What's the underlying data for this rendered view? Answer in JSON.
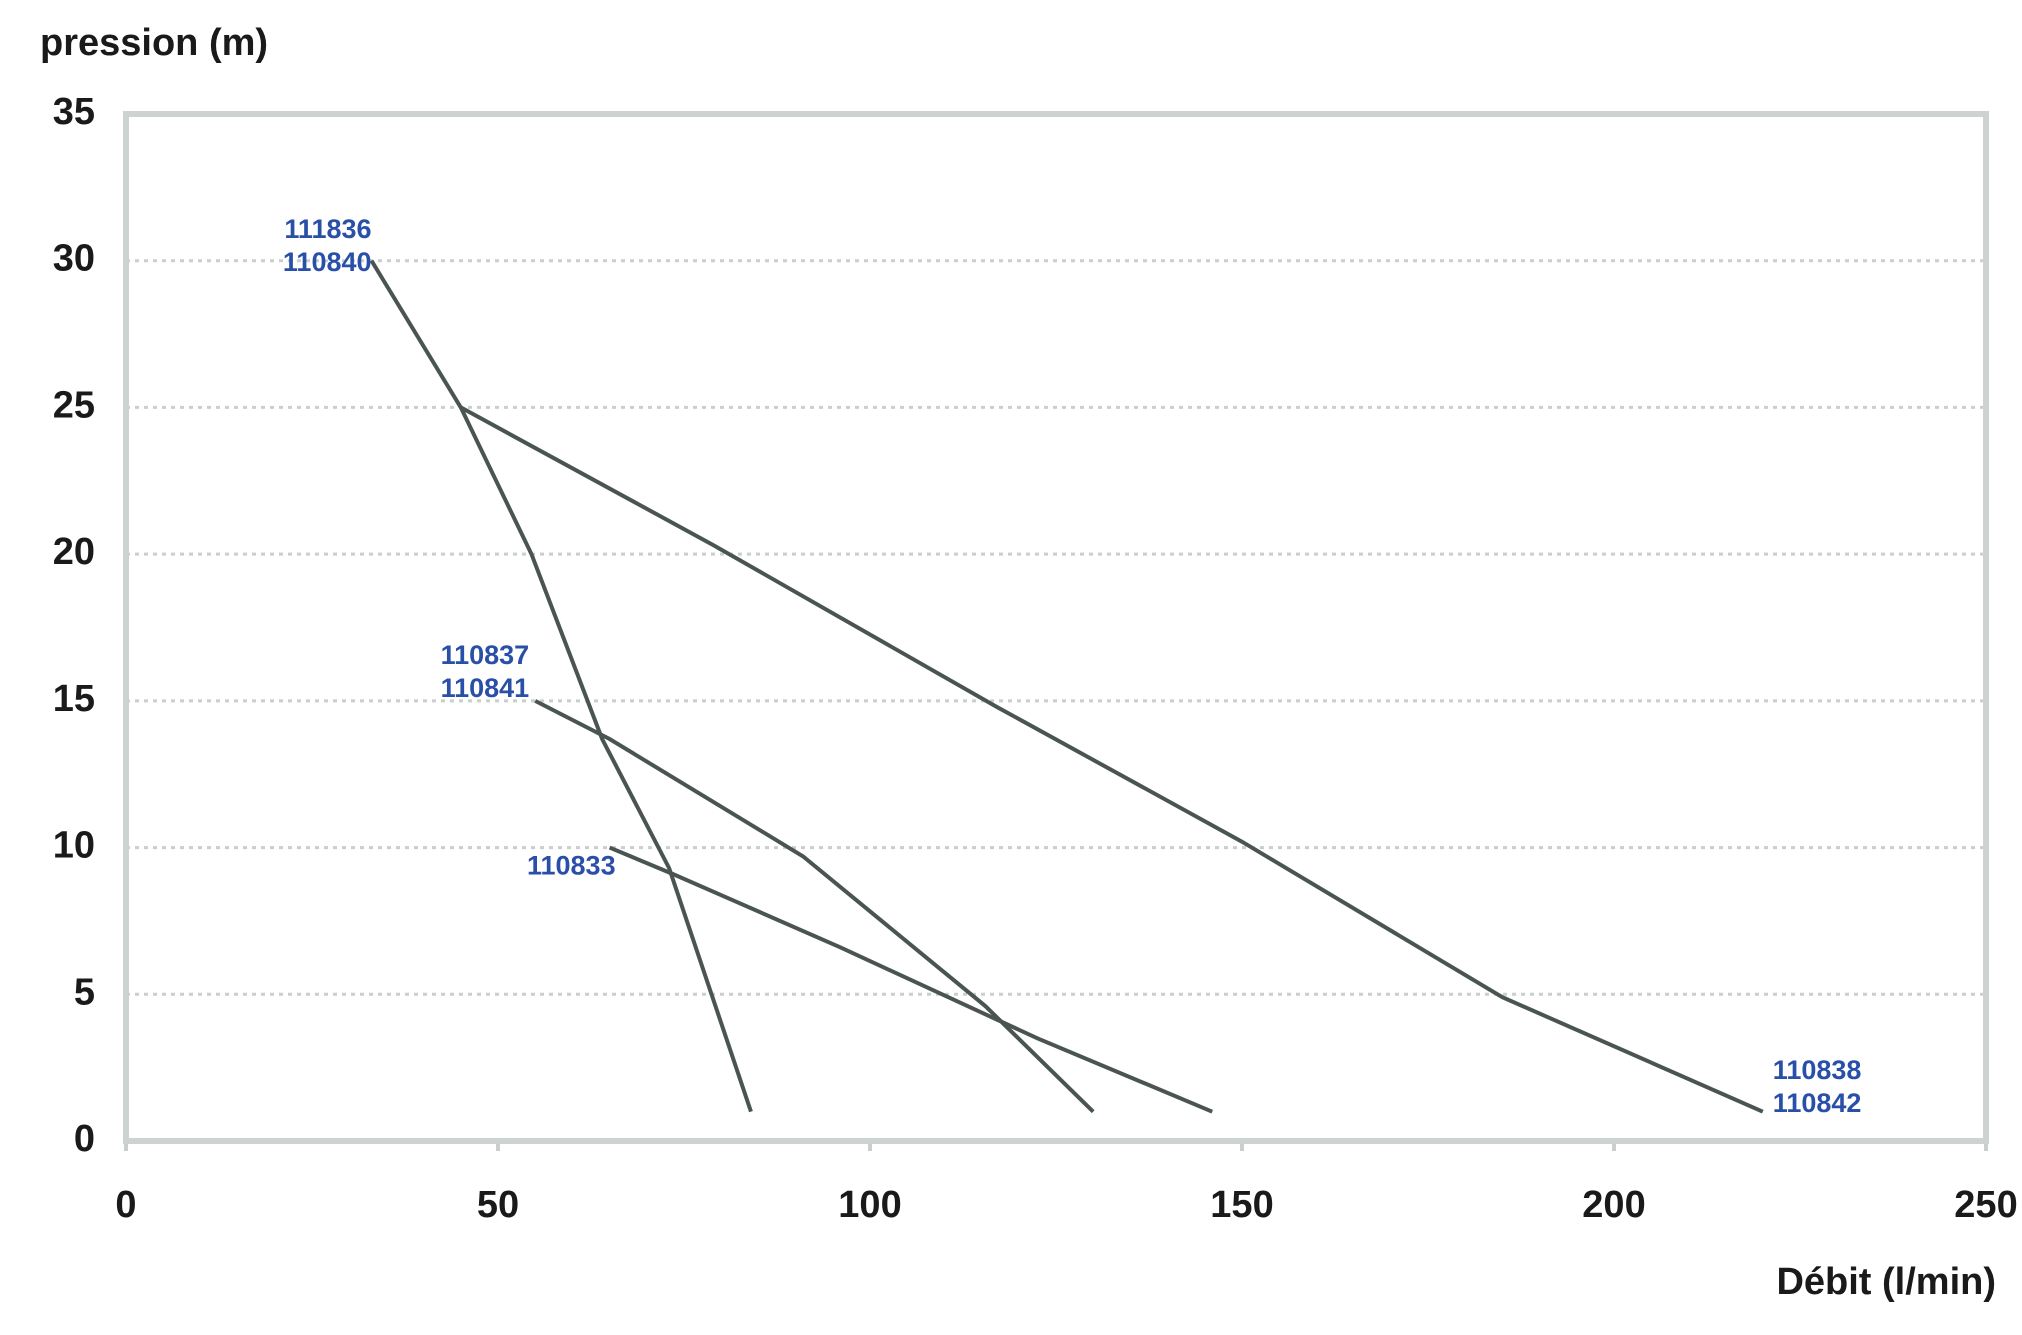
{
  "chart_data": {
    "type": "line",
    "y_label": "pression (m)",
    "x_label": "Débit (l/min)",
    "xlim": [
      0,
      250
    ],
    "xticks": [
      0,
      50,
      100,
      150,
      200,
      250
    ],
    "ylim": [
      0,
      35
    ],
    "yticks": [
      0,
      5,
      10,
      15,
      20,
      25,
      30,
      35
    ],
    "grid": true,
    "series": [
      {
        "labels": [
          "111836",
          "110840"
        ],
        "color": "#4a5552",
        "x": [
          33,
          45,
          54.5,
          64,
          73,
          84
        ],
        "values": [
          30,
          25,
          20,
          13.7,
          9.3,
          1
        ]
      },
      {
        "labels": [
          "110838",
          "110842"
        ],
        "color": "#4a5552",
        "x": [
          45,
          79,
          117,
          150,
          185,
          220
        ],
        "values": [
          25,
          20.3,
          14.8,
          10.2,
          4.9,
          1
        ]
      },
      {
        "labels": [
          "110837",
          "110841"
        ],
        "color": "#4a5552",
        "x": [
          55,
          65,
          91,
          115.5,
          130
        ],
        "values": [
          15,
          13.7,
          9.7,
          4.6,
          1
        ]
      },
      {
        "labels": [
          "110833"
        ],
        "color": "#4a5552",
        "x": [
          65,
          73.5,
          96,
          122.5,
          146
        ],
        "values": [
          10,
          9.1,
          6.6,
          3.5,
          1
        ]
      }
    ]
  }
}
